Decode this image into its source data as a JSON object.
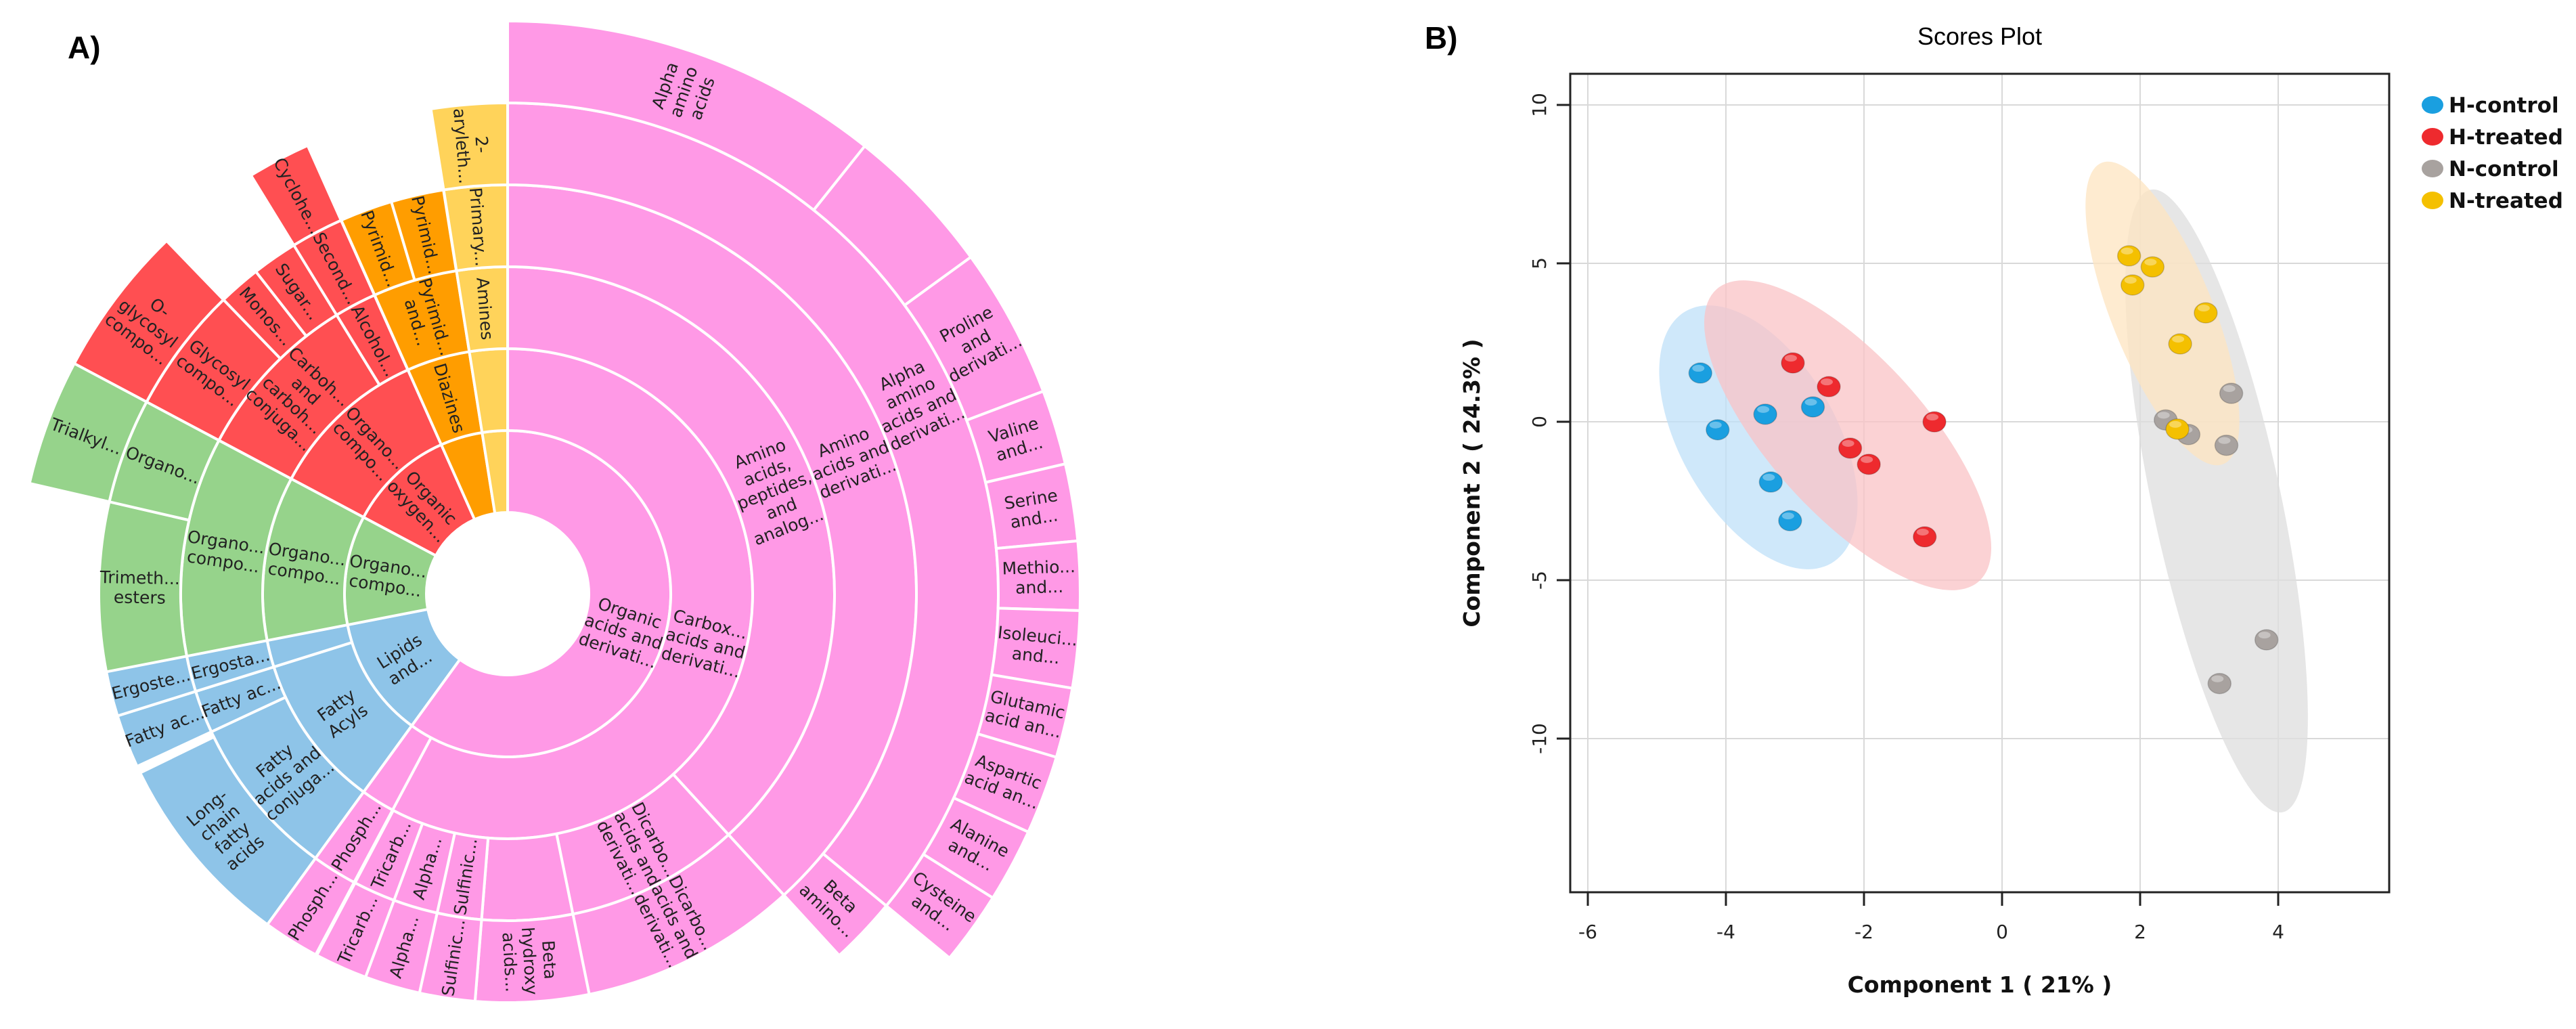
{
  "panels": {
    "a_label": "A)",
    "b_label": "B)"
  },
  "chart_data": [
    {
      "type": "sunburst",
      "title": "",
      "tree": [
        {
          "label_lines": [
            "Organic",
            "acids and",
            "derivati..."
          ],
          "share_pct": 60,
          "color": "#ff99e6",
          "children": [
            {
              "label_lines": [
                "Carbox...",
                "acids and",
                "derivati..."
              ],
              "share_pct": 57.78,
              "children": [
                {
                  "label_lines": [
                    "Amino",
                    "acids,",
                    "peptides,",
                    "and",
                    "analog..."
                  ],
                  "share_pct": 38.19,
                  "children": [
                    {
                      "label_lines": [
                        "Amino",
                        "acids and",
                        "derivati..."
                      ],
                      "share_pct": 38.19,
                      "children": [
                        {
                          "label_lines": [
                            "Alpha",
                            "amino",
                            "acids and",
                            "derivati..."
                          ],
                          "share_pct": 35.97,
                          "children": [
                            {
                              "label_lines": [
                                "Alpha",
                                "amino",
                                "acids"
                              ],
                              "share_pct": 10.72,
                              "children": []
                            },
                            {
                              "label_lines": [],
                              "share_pct": 4.28,
                              "children": []
                            },
                            {
                              "label_lines": [
                                "Proline",
                                "and",
                                "derivati..."
                              ],
                              "share_pct": 4.25,
                              "children": []
                            },
                            {
                              "label_lines": [
                                "Valine",
                                "and..."
                              ],
                              "share_pct": 2.11,
                              "children": []
                            },
                            {
                              "label_lines": [
                                "Serine",
                                "and..."
                              ],
                              "share_pct": 2.17,
                              "children": []
                            },
                            {
                              "label_lines": [
                                "Methio...",
                                "and..."
                              ],
                              "share_pct": 1.94,
                              "children": []
                            },
                            {
                              "label_lines": [
                                "Isoleuci...",
                                "and..."
                              ],
                              "share_pct": 2.17,
                              "children": []
                            },
                            {
                              "label_lines": [
                                "Glutamic",
                                "acid an..."
                              ],
                              "share_pct": 1.97,
                              "children": []
                            },
                            {
                              "label_lines": [
                                "Aspartic",
                                "acid an..."
                              ],
                              "share_pct": 2.22,
                              "children": []
                            },
                            {
                              "label_lines": [
                                "Alanine",
                                "and..."
                              ],
                              "share_pct": 2.08,
                              "children": []
                            },
                            {
                              "label_lines": [
                                "Cysteine",
                                "and..."
                              ],
                              "share_pct": 2.06,
                              "children": []
                            }
                          ]
                        },
                        {
                          "label_lines": [
                            "Beta",
                            "amino..."
                          ],
                          "share_pct": 2.22,
                          "children": []
                        }
                      ]
                    }
                  ]
                },
                {
                  "label_lines": [
                    "Dicarbo...",
                    "acids and",
                    "derivati..."
                  ],
                  "share_pct": 8.61,
                  "children": [
                    {
                      "label_lines": [
                        "Dicarbo...",
                        "acids and",
                        "derivati..."
                      ],
                      "share_pct": 8.61,
                      "children": []
                    }
                  ]
                },
                {
                  "label_lines": [],
                  "share_pct": 4.47,
                  "children": [
                    {
                      "label_lines": [
                        "Beta",
                        "hydroxy",
                        "acids..."
                      ],
                      "share_pct": 4.47,
                      "children": []
                    }
                  ]
                },
                {
                  "label_lines": [
                    "Sulfinic..."
                  ],
                  "share_pct": 2.19,
                  "children": [
                    {
                      "label_lines": [
                        "Sulfinic..."
                      ],
                      "share_pct": 2.19,
                      "children": []
                    }
                  ]
                },
                {
                  "label_lines": [
                    "Alpha..."
                  ],
                  "share_pct": 2.19,
                  "children": [
                    {
                      "label_lines": [
                        "Alpha..."
                      ],
                      "share_pct": 2.19,
                      "children": []
                    }
                  ]
                },
                {
                  "label_lines": [
                    "Tricarb..."
                  ],
                  "share_pct": 2.08,
                  "children": [
                    {
                      "label_lines": [
                        "Tricarb..."
                      ],
                      "share_pct": 2.08,
                      "children": []
                    }
                  ]
                }
              ]
            },
            {
              "label_lines": [],
              "share_pct": 2.22,
              "children": [
                {
                  "label_lines": [
                    "Phosph..."
                  ],
                  "share_pct": 2.22,
                  "children": [
                    {
                      "label_lines": [
                        "Phosph..."
                      ],
                      "share_pct": 2.22,
                      "children": []
                    }
                  ]
                }
              ]
            }
          ]
        },
        {
          "label_lines": [
            "Lipids",
            "and..."
          ],
          "share_pct": 11.94,
          "color": "#8ec4e8",
          "children": [
            {
              "label_lines": [
                "Fatty",
                "Acyls"
              ],
              "share_pct": 10.17,
              "children": [
                {
                  "label_lines": [
                    "Fatty",
                    "acids and",
                    "conjuga..."
                  ],
                  "share_pct": 8.06,
                  "children": [
                    {
                      "label_lines": [
                        "Long-",
                        "chain",
                        "fatty",
                        "acids"
                      ],
                      "share_pct": 7.78,
                      "children": []
                    }
                  ]
                },
                {
                  "label_lines": [
                    "Fatty ac..."
                  ],
                  "share_pct": 2.11,
                  "children": [
                    {
                      "label_lines": [
                        "Fatty ac..."
                      ],
                      "share_pct": 2.11,
                      "children": []
                    }
                  ]
                }
              ]
            },
            {
              "label_lines": [],
              "share_pct": 1.78,
              "children": [
                {
                  "label_lines": [
                    "Ergosta..."
                  ],
                  "share_pct": 1.78,
                  "children": [
                    {
                      "label_lines": [
                        "Ergoste..."
                      ],
                      "share_pct": 1.78,
                      "children": []
                    }
                  ]
                }
              ]
            }
          ]
        },
        {
          "label_lines": [
            "Organo...",
            "compo..."
          ],
          "share_pct": 10.83,
          "color": "#96d38b",
          "children": [
            {
              "label_lines": [
                "Organo...",
                "compo..."
              ],
              "share_pct": 10.83,
              "children": [
                {
                  "label_lines": [
                    "Organo...",
                    "compo..."
                  ],
                  "share_pct": 10.83,
                  "children": [
                    {
                      "label_lines": [
                        "Trimeth...",
                        "esters"
                      ],
                      "share_pct": 6.67,
                      "children": []
                    },
                    {
                      "label_lines": [
                        "Organo..."
                      ],
                      "share_pct": 4.17,
                      "children": [
                        {
                          "label_lines": [
                            "Trialkyl..."
                          ],
                          "share_pct": 4.17,
                          "children": []
                        }
                      ]
                    }
                  ]
                }
              ]
            }
          ]
        },
        {
          "label_lines": [
            "Organic",
            "oxygen..."
          ],
          "share_pct": 10.56,
          "color": "#ff4f52",
          "children": [
            {
              "label_lines": [
                "Organo...",
                "compo..."
              ],
              "share_pct": 10.56,
              "children": [
                {
                  "label_lines": [
                    "Carboh...",
                    "and",
                    "carboh...",
                    "conjuga..."
                  ],
                  "share_pct": 8.47,
                  "children": [
                    {
                      "label_lines": [
                        "Glycosyl",
                        "compo..."
                      ],
                      "share_pct": 5,
                      "children": [
                        {
                          "label_lines": [
                            "O-",
                            "glycosyl",
                            "compo..."
                          ],
                          "share_pct": 5,
                          "children": []
                        }
                      ]
                    },
                    {
                      "label_lines": [
                        "Monos..."
                      ],
                      "share_pct": 1.67,
                      "children": []
                    },
                    {
                      "label_lines": [
                        "Sugar..."
                      ],
                      "share_pct": 1.81,
                      "children": []
                    }
                  ]
                },
                {
                  "label_lines": [
                    "Alcohol..."
                  ],
                  "share_pct": 2.08,
                  "children": [
                    {
                      "label_lines": [
                        "Second..."
                      ],
                      "share_pct": 2.08,
                      "children": [
                        {
                          "label_lines": [
                            "Cyclohe..."
                          ],
                          "share_pct": 2.08,
                          "children": []
                        }
                      ]
                    }
                  ]
                }
              ]
            }
          ]
        },
        {
          "label_lines": [],
          "share_pct": 4.17,
          "color": "#ff9d00",
          "children": [
            {
              "label_lines": [
                "Diazines"
              ],
              "share_pct": 4.17,
              "children": [
                {
                  "label_lines": [
                    "Pyrimid...",
                    "and..."
                  ],
                  "share_pct": 4.17,
                  "children": [
                    {
                      "label_lines": [
                        "Pyrimid..."
                      ],
                      "share_pct": 2.08,
                      "children": []
                    },
                    {
                      "label_lines": [
                        "Pyrimid..."
                      ],
                      "share_pct": 2.08,
                      "children": []
                    }
                  ]
                }
              ]
            }
          ]
        },
        {
          "label_lines": [],
          "share_pct": 2.5,
          "color": "#ffd35a",
          "children": [
            {
              "label_lines": [],
              "share_pct": 2.5,
              "children": [
                {
                  "label_lines": [
                    "Amines"
                  ],
                  "share_pct": 2.5,
                  "children": [
                    {
                      "label_lines": [
                        "Primary..."
                      ],
                      "share_pct": 2.5,
                      "children": [
                        {
                          "label_lines": [
                            "2-",
                            "aryleth..."
                          ],
                          "share_pct": 2.5,
                          "children": []
                        }
                      ]
                    }
                  ]
                }
              ]
            }
          ]
        }
      ]
    },
    {
      "type": "scatter",
      "title": "Scores Plot",
      "xlabel": "Component 1 ( 21% )",
      "ylabel": "Component 2 ( 24.3% )",
      "xlim": [
        -6.25,
        5.6
      ],
      "ylim": [
        -14.85,
        11
      ],
      "xticks": [
        -6,
        -4,
        -2,
        0,
        2,
        4
      ],
      "yticks": [
        10,
        5,
        0,
        -5,
        -10
      ],
      "xtick_labels": [
        "-6",
        "-4",
        "-2",
        "0",
        "2",
        "4"
      ],
      "ytick_labels": [
        "10",
        "5",
        "0",
        "-5",
        "-10"
      ],
      "grid": true,
      "legend_position": "top-right outside",
      "series": [
        {
          "name": "H-control",
          "color": "#1a9fe0",
          "ellipse_color": "#bfe0f8",
          "points": [
            [
              -4.37,
              1.58
            ],
            [
              -4.12,
              -0.21
            ],
            [
              -3.43,
              0.28
            ],
            [
              -2.74,
              0.51
            ],
            [
              -3.35,
              -1.86
            ],
            [
              -3.07,
              -3.08
            ]
          ]
        },
        {
          "name": "H-treated",
          "color": "#ee2a2e",
          "ellipse_color": "#f9c3c5",
          "points": [
            [
              -3.03,
              1.9
            ],
            [
              -2.51,
              1.15
            ],
            [
              -2.2,
              -0.79
            ],
            [
              -1.93,
              -1.3
            ],
            [
              -0.98,
              0.04
            ],
            [
              -1.12,
              -3.59
            ]
          ]
        },
        {
          "name": "N-control",
          "color": "#a8a29f",
          "ellipse_color": "#dedede",
          "points": [
            [
              2.37,
              0.1
            ],
            [
              2.7,
              -0.36
            ],
            [
              3.32,
              0.94
            ],
            [
              3.25,
              -0.7
            ],
            [
              3.83,
              -6.84
            ],
            [
              3.15,
              -8.22
            ]
          ]
        },
        {
          "name": "N-treated",
          "color": "#f4c000",
          "ellipse_color": "#fde4c0",
          "points": [
            [
              1.84,
              5.28
            ],
            [
              2.18,
              4.93
            ],
            [
              1.89,
              4.36
            ],
            [
              2.95,
              3.48
            ],
            [
              2.58,
              2.5
            ],
            [
              2.54,
              -0.19
            ]
          ]
        }
      ]
    }
  ]
}
